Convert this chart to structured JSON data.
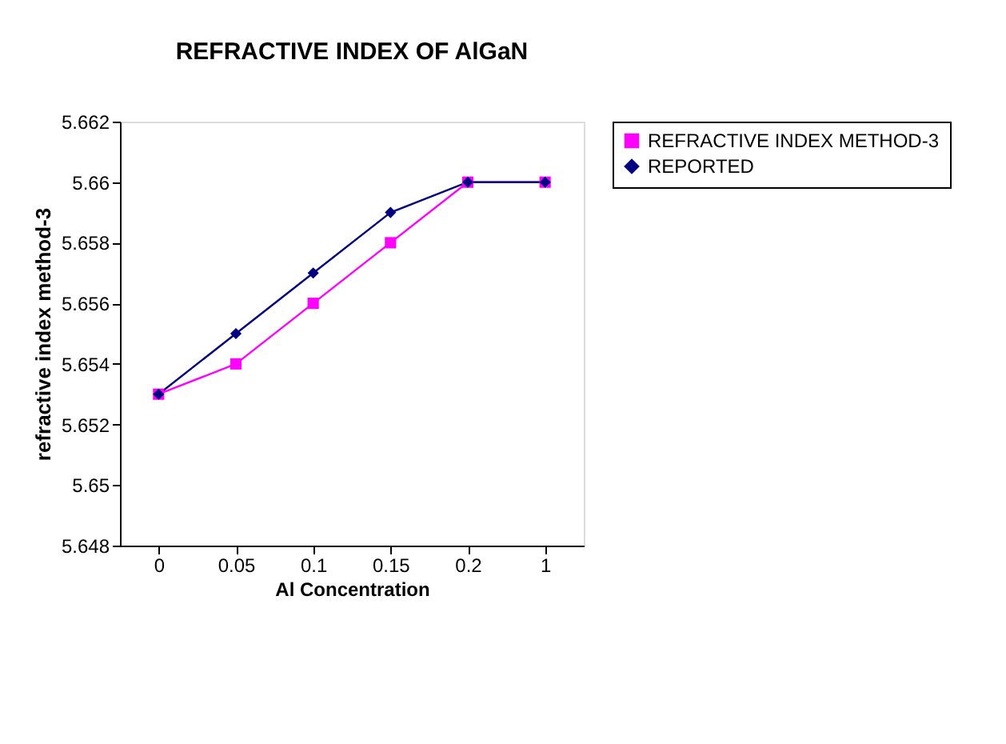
{
  "chart_data": {
    "type": "line",
    "title": "REFRACTIVE INDEX OF AlGaN",
    "xlabel": "Al Concentration",
    "ylabel": "refractive index method-3",
    "categories": [
      "0",
      "0.05",
      "0.1",
      "0.15",
      "0.2",
      "1"
    ],
    "series": [
      {
        "name": "REFRACTIVE INDEX METHOD-3",
        "color": "#ff00ff",
        "marker": "square",
        "values": [
          5.653,
          5.654,
          5.656,
          5.658,
          5.66,
          5.66
        ]
      },
      {
        "name": "REPORTED",
        "color": "#000080",
        "marker": "diamond",
        "values": [
          5.653,
          5.655,
          5.657,
          5.659,
          5.66,
          5.66
        ]
      }
    ],
    "ylim": [
      5.648,
      5.662
    ],
    "yticks": [
      5.648,
      5.65,
      5.652,
      5.654,
      5.656,
      5.658,
      5.66,
      5.662
    ],
    "grid": false,
    "legend": "right",
    "line_style": "solid"
  }
}
